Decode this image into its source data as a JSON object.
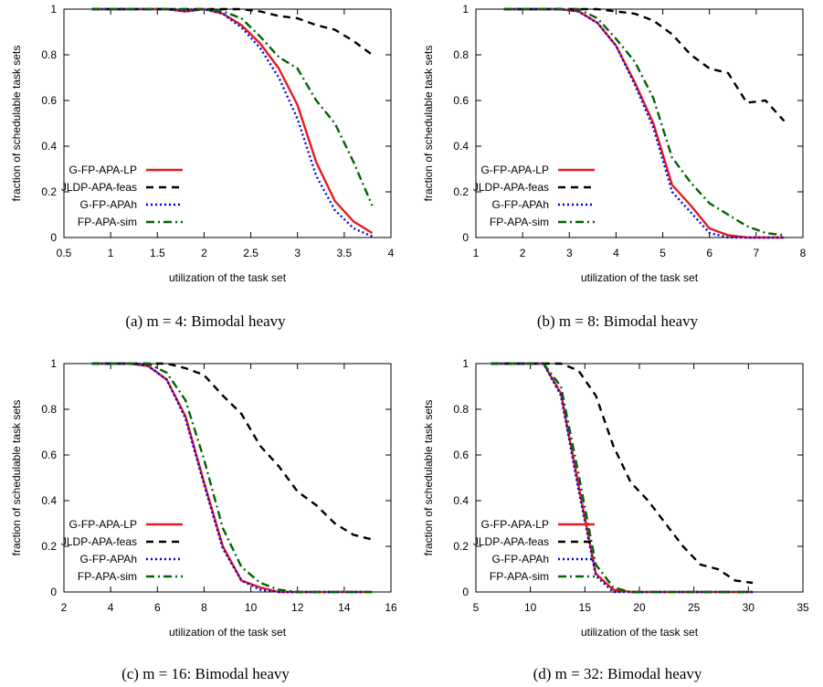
{
  "chart_data": [
    {
      "type": "line",
      "caption": "(a)  m = 4: Bimodal heavy",
      "xlabel": "utilization of the task set",
      "ylabel": "fraction of schedulable task sets",
      "xlim": [
        0.5,
        4
      ],
      "ylim": [
        0,
        1
      ],
      "xticks": [
        0.5,
        1,
        1.5,
        2,
        2.5,
        3,
        3.5,
        4
      ],
      "yticks": [
        0,
        0.2,
        0.4,
        0.6,
        0.8,
        1
      ],
      "legend": "bottom-left",
      "series": [
        {
          "name": "G-FP-APA-LP",
          "color": "#e41a1c",
          "dash": "solid",
          "x": [
            0.8,
            1.0,
            1.2,
            1.4,
            1.6,
            1.8,
            2.0,
            2.2,
            2.4,
            2.6,
            2.8,
            3.0,
            3.2,
            3.4,
            3.6,
            3.8
          ],
          "y": [
            1,
            1,
            1,
            1,
            1,
            0.99,
            1,
            0.98,
            0.93,
            0.85,
            0.74,
            0.58,
            0.33,
            0.16,
            0.07,
            0.02
          ]
        },
        {
          "name": "JLDP-APA-feas",
          "color": "#000000",
          "dash": "dashed",
          "x": [
            0.8,
            1.0,
            1.2,
            1.4,
            1.6,
            1.8,
            2.0,
            2.2,
            2.4,
            2.6,
            2.8,
            3.0,
            3.2,
            3.4,
            3.6,
            3.8
          ],
          "y": [
            1,
            1,
            1,
            1,
            1,
            1,
            1,
            1,
            1,
            0.99,
            0.97,
            0.96,
            0.93,
            0.91,
            0.86,
            0.8
          ]
        },
        {
          "name": "G-FP-APAh",
          "color": "#0000ee",
          "dash": "dotted",
          "x": [
            0.8,
            1.0,
            1.2,
            1.4,
            1.6,
            1.8,
            2.0,
            2.2,
            2.4,
            2.6,
            2.8,
            3.0,
            3.2,
            3.4,
            3.6,
            3.8
          ],
          "y": [
            1,
            1,
            1,
            1,
            1,
            0.99,
            1,
            0.98,
            0.92,
            0.83,
            0.7,
            0.52,
            0.27,
            0.12,
            0.04,
            0.005
          ]
        },
        {
          "name": "FP-APA-sim",
          "color": "#006400",
          "dash": "dashdot",
          "x": [
            0.8,
            1.0,
            1.2,
            1.4,
            1.6,
            1.8,
            2.0,
            2.2,
            2.4,
            2.6,
            2.8,
            3.0,
            3.2,
            3.4,
            3.6,
            3.8
          ],
          "y": [
            1,
            1,
            1,
            1,
            1,
            1,
            1,
            0.99,
            0.96,
            0.88,
            0.79,
            0.74,
            0.6,
            0.5,
            0.33,
            0.14
          ]
        }
      ]
    },
    {
      "type": "line",
      "caption": "(b)  m = 8: Bimodal heavy",
      "xlabel": "utilization of the task set",
      "ylabel": "fraction of schedulable task sets",
      "xlim": [
        1,
        8
      ],
      "ylim": [
        0,
        1
      ],
      "xticks": [
        1,
        2,
        3,
        4,
        5,
        6,
        7,
        8
      ],
      "yticks": [
        0,
        0.2,
        0.4,
        0.6,
        0.8,
        1
      ],
      "legend": "bottom-left",
      "series": [
        {
          "name": "G-FP-APA-LP",
          "color": "#e41a1c",
          "dash": "solid",
          "x": [
            1.6,
            2.0,
            2.4,
            2.8,
            3.2,
            3.6,
            4.0,
            4.4,
            4.8,
            5.2,
            5.6,
            6.0,
            6.4,
            6.8,
            7.2,
            7.6
          ],
          "y": [
            1,
            1,
            1,
            1,
            0.99,
            0.94,
            0.84,
            0.68,
            0.5,
            0.23,
            0.14,
            0.04,
            0.01,
            0,
            0,
            0
          ]
        },
        {
          "name": "JLDP-APA-feas",
          "color": "#000000",
          "dash": "dashed",
          "x": [
            1.6,
            2.0,
            2.4,
            2.8,
            3.2,
            3.6,
            4.0,
            4.4,
            4.8,
            5.2,
            5.6,
            6.0,
            6.4,
            6.8,
            7.2,
            7.6
          ],
          "y": [
            1,
            1,
            1,
            1,
            1,
            1,
            0.99,
            0.98,
            0.95,
            0.89,
            0.8,
            0.74,
            0.72,
            0.59,
            0.6,
            0.51
          ]
        },
        {
          "name": "G-FP-APAh",
          "color": "#0000ee",
          "dash": "dotted",
          "x": [
            1.6,
            2.0,
            2.4,
            2.8,
            3.2,
            3.6,
            4.0,
            4.4,
            4.8,
            5.2,
            5.6,
            6.0,
            6.4,
            6.8,
            7.2,
            7.6
          ],
          "y": [
            1,
            1,
            1,
            1,
            0.99,
            0.94,
            0.84,
            0.67,
            0.48,
            0.2,
            0.11,
            0.02,
            0,
            0,
            0,
            0
          ]
        },
        {
          "name": "FP-APA-sim",
          "color": "#006400",
          "dash": "dashdot",
          "x": [
            1.6,
            2.0,
            2.4,
            2.8,
            3.2,
            3.6,
            4.0,
            4.4,
            4.8,
            5.2,
            5.6,
            6.0,
            6.4,
            6.8,
            7.2,
            7.6
          ],
          "y": [
            1,
            1,
            1,
            1,
            1,
            0.96,
            0.87,
            0.77,
            0.61,
            0.35,
            0.24,
            0.15,
            0.1,
            0.05,
            0.02,
            0.01
          ]
        }
      ]
    },
    {
      "type": "line",
      "caption": "(c)  m = 16: Bimodal heavy",
      "xlabel": "utilization of the task set",
      "ylabel": "fraction of schedulable task sets",
      "xlim": [
        2,
        16
      ],
      "ylim": [
        0,
        1
      ],
      "xticks": [
        2,
        4,
        6,
        8,
        10,
        12,
        14,
        16
      ],
      "yticks": [
        0,
        0.2,
        0.4,
        0.6,
        0.8,
        1
      ],
      "legend": "bottom-left",
      "series": [
        {
          "name": "G-FP-APA-LP",
          "color": "#e41a1c",
          "dash": "solid",
          "x": [
            3.2,
            4.0,
            4.8,
            5.6,
            6.4,
            7.2,
            8.0,
            8.8,
            9.6,
            10.4,
            11.2,
            12.0,
            12.8,
            13.6,
            14.4,
            15.2
          ],
          "y": [
            1,
            1,
            1,
            0.99,
            0.93,
            0.77,
            0.48,
            0.2,
            0.05,
            0.02,
            0,
            0,
            0,
            0,
            0,
            0
          ]
        },
        {
          "name": "JLDP-APA-feas",
          "color": "#000000",
          "dash": "dashed",
          "x": [
            3.2,
            4.0,
            4.8,
            5.6,
            6.4,
            7.2,
            8.0,
            8.8,
            9.6,
            10.4,
            11.2,
            12.0,
            12.8,
            13.6,
            14.4,
            15.2
          ],
          "y": [
            1,
            1,
            1,
            1,
            1,
            0.98,
            0.95,
            0.86,
            0.78,
            0.64,
            0.55,
            0.44,
            0.38,
            0.3,
            0.25,
            0.23
          ]
        },
        {
          "name": "G-FP-APAh",
          "color": "#0000ee",
          "dash": "dotted",
          "x": [
            3.2,
            4.0,
            4.8,
            5.6,
            6.4,
            7.2,
            8.0,
            8.8,
            9.6,
            10.4,
            11.2,
            12.0,
            12.8,
            13.6,
            14.4,
            15.2
          ],
          "y": [
            1,
            1,
            1,
            0.99,
            0.93,
            0.76,
            0.47,
            0.19,
            0.05,
            0.01,
            0,
            0,
            0,
            0,
            0,
            0
          ]
        },
        {
          "name": "FP-APA-sim",
          "color": "#006400",
          "dash": "dashdot",
          "x": [
            3.2,
            4.0,
            4.8,
            5.6,
            6.4,
            7.2,
            8.0,
            8.8,
            9.6,
            10.4,
            11.2,
            12.0,
            12.8,
            13.6,
            14.4,
            15.2
          ],
          "y": [
            1,
            1,
            1,
            1,
            0.96,
            0.84,
            0.58,
            0.28,
            0.11,
            0.04,
            0.01,
            0,
            0,
            0,
            0,
            0
          ]
        }
      ]
    },
    {
      "type": "line",
      "caption": "(d)  m = 32: Bimodal heavy",
      "xlabel": "utilization of the task set",
      "ylabel": "fraction of schedulable task sets",
      "xlim": [
        5,
        35
      ],
      "ylim": [
        0,
        1
      ],
      "xticks": [
        5,
        10,
        15,
        20,
        25,
        30,
        35
      ],
      "yticks": [
        0,
        0.2,
        0.4,
        0.6,
        0.8,
        1
      ],
      "legend": "bottom-left",
      "series": [
        {
          "name": "G-FP-APA-LP",
          "color": "#e41a1c",
          "dash": "solid",
          "x": [
            6.4,
            8.0,
            9.6,
            11.2,
            12.8,
            14.4,
            16.0,
            17.6,
            19.2,
            20.8,
            22.4,
            24.0,
            25.6,
            27.2,
            28.8,
            30.4
          ],
          "y": [
            1,
            1,
            1,
            1,
            0.87,
            0.47,
            0.08,
            0.01,
            0,
            0,
            0,
            0,
            0,
            0,
            0,
            0
          ]
        },
        {
          "name": "JLDP-APA-feas",
          "color": "#000000",
          "dash": "dashed",
          "x": [
            6.4,
            8.0,
            9.6,
            11.2,
            12.8,
            14.4,
            16.0,
            17.6,
            19.2,
            20.8,
            22.4,
            24.0,
            25.6,
            27.2,
            28.8,
            30.4
          ],
          "y": [
            1,
            1,
            1,
            1,
            1,
            0.97,
            0.86,
            0.64,
            0.48,
            0.4,
            0.3,
            0.2,
            0.12,
            0.1,
            0.05,
            0.04
          ]
        },
        {
          "name": "G-FP-APAh",
          "color": "#0000ee",
          "dash": "dotted",
          "x": [
            6.4,
            8.0,
            9.6,
            11.2,
            12.8,
            14.4,
            16.0,
            17.6,
            19.2,
            20.8,
            22.4,
            24.0,
            25.6,
            27.2,
            28.8,
            30.4
          ],
          "y": [
            1,
            1,
            1,
            1,
            0.86,
            0.45,
            0.07,
            0,
            0,
            0,
            0,
            0,
            0,
            0,
            0,
            0
          ]
        },
        {
          "name": "FP-APA-sim",
          "color": "#006400",
          "dash": "dashdot",
          "x": [
            6.4,
            8.0,
            9.6,
            11.2,
            12.8,
            14.4,
            16.0,
            17.6,
            19.2,
            20.8,
            22.4,
            24.0,
            25.6,
            27.2,
            28.8,
            30.4
          ],
          "y": [
            1,
            1,
            1,
            1,
            0.9,
            0.52,
            0.12,
            0.02,
            0,
            0,
            0,
            0,
            0,
            0,
            0,
            0
          ]
        }
      ]
    }
  ]
}
